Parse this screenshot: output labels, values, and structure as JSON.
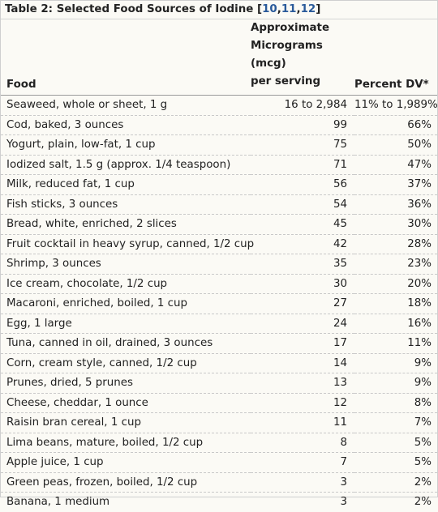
{
  "caption": {
    "prefix": "Table 2: Selected Food Sources of Iodine [",
    "refs": [
      "10",
      "11",
      "12"
    ],
    "suffix": "]"
  },
  "headers": {
    "food": "Food",
    "mcg_lines": [
      "Approximate",
      "Micrograms (mcg)",
      "per serving"
    ],
    "dv": "Percent DV*"
  },
  "rows": [
    {
      "food": "Seaweed, whole or sheet, 1 g",
      "mcg": "16 to 2,984",
      "dv": "11% to 1,989%"
    },
    {
      "food": "Cod, baked, 3 ounces",
      "mcg": "99",
      "dv": "66%"
    },
    {
      "food": "Yogurt, plain, low-fat, 1 cup",
      "mcg": "75",
      "dv": "50%"
    },
    {
      "food": "Iodized salt, 1.5 g (approx. 1/4 teaspoon)",
      "mcg": "71",
      "dv": "47%"
    },
    {
      "food": "Milk, reduced fat, 1 cup",
      "mcg": "56",
      "dv": "37%"
    },
    {
      "food": "Fish sticks, 3 ounces",
      "mcg": "54",
      "dv": "36%"
    },
    {
      "food": "Bread, white, enriched, 2 slices",
      "mcg": "45",
      "dv": "30%"
    },
    {
      "food": "Fruit cocktail in heavy syrup, canned, 1/2 cup",
      "mcg": "42",
      "dv": "28%"
    },
    {
      "food": "Shrimp, 3 ounces",
      "mcg": "35",
      "dv": "23%"
    },
    {
      "food": "Ice cream, chocolate, 1/2 cup",
      "mcg": "30",
      "dv": "20%"
    },
    {
      "food": "Macaroni, enriched, boiled, 1 cup",
      "mcg": "27",
      "dv": "18%"
    },
    {
      "food": "Egg, 1 large",
      "mcg": "24",
      "dv": "16%"
    },
    {
      "food": "Tuna, canned in oil, drained, 3 ounces",
      "mcg": "17",
      "dv": "11%"
    },
    {
      "food": "Corn, cream style, canned, 1/2 cup",
      "mcg": "14",
      "dv": "9%"
    },
    {
      "food": "Prunes, dried, 5 prunes",
      "mcg": "13",
      "dv": "9%"
    },
    {
      "food": "Cheese, cheddar, 1 ounce",
      "mcg": "12",
      "dv": "8%"
    },
    {
      "food": "Raisin bran cereal, 1 cup",
      "mcg": "11",
      "dv": "7%"
    },
    {
      "food": "Lima beans, mature, boiled, 1/2 cup",
      "mcg": "8",
      "dv": "5%"
    },
    {
      "food": "Apple juice, 1 cup",
      "mcg": "7",
      "dv": "5%"
    },
    {
      "food": "Green peas, frozen, boiled, 1/2 cup",
      "mcg": "3",
      "dv": "2%"
    },
    {
      "food": "Banana, 1 medium",
      "mcg": "3",
      "dv": "2%"
    }
  ]
}
